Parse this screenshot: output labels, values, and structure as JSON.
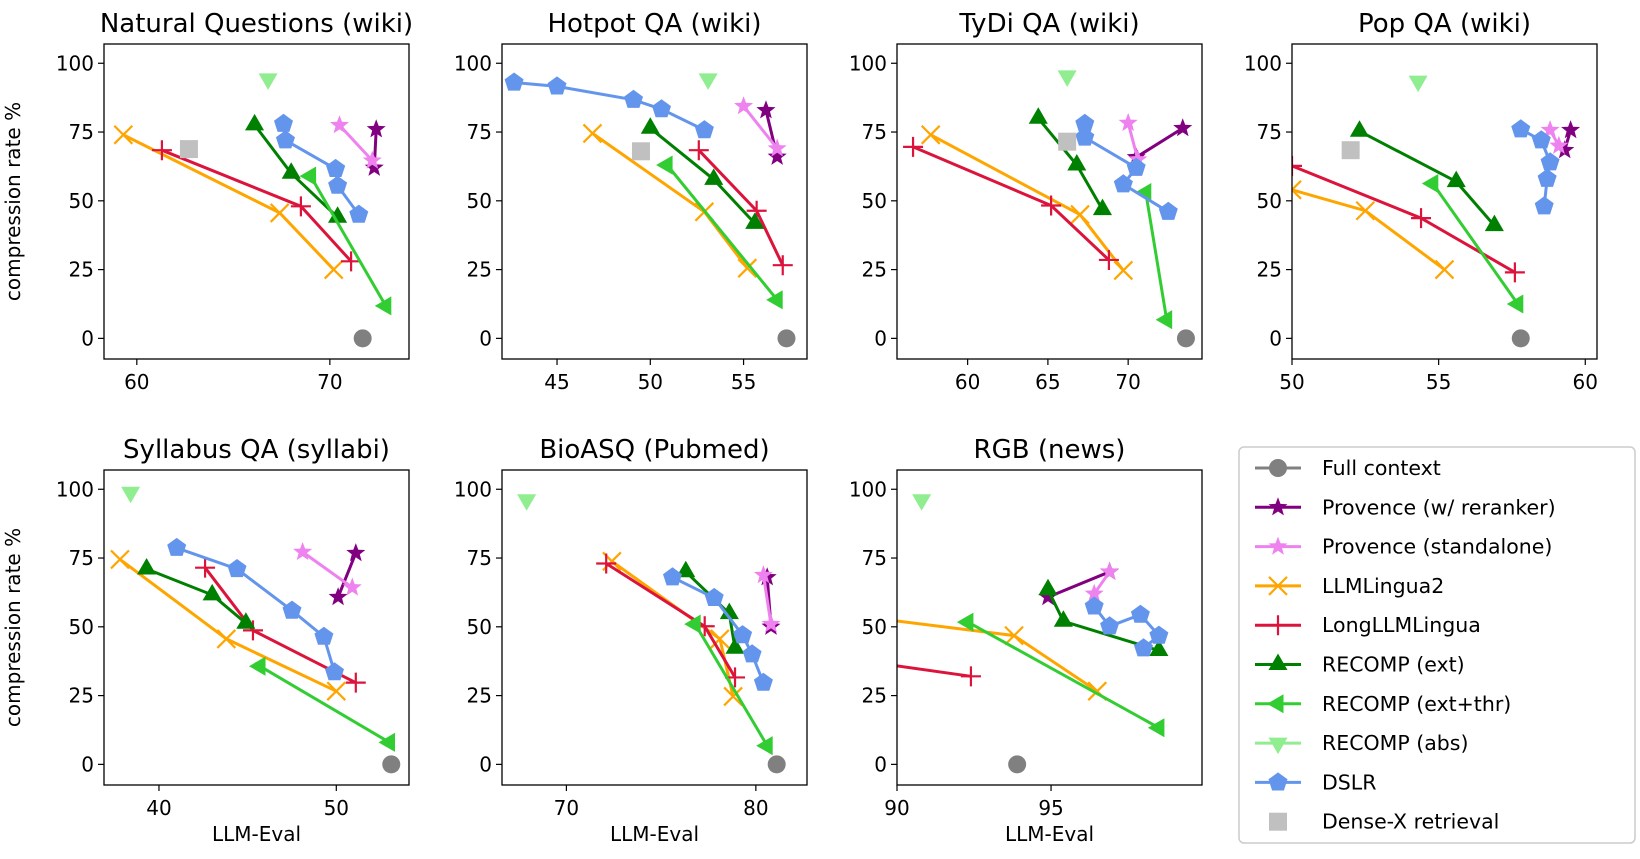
{
  "chart_data": {
    "type": "line",
    "ylabel": "compression rate %",
    "xlabel": "LLM-Eval",
    "grid": false,
    "legend_placement": "bottom-right",
    "ylim": [
      -7.5,
      107
    ],
    "yticks": [
      0,
      25,
      50,
      75,
      100
    ],
    "legend": [
      {
        "name": "Full context",
        "color": "#808080",
        "marker": "circle"
      },
      {
        "name": "Provence (w/ reranker)",
        "color": "#800080",
        "marker": "star"
      },
      {
        "name": "Provence (standalone)",
        "color": "#ee82ee",
        "marker": "star"
      },
      {
        "name": "LLMLingua2",
        "color": "#ffa500",
        "marker": "x"
      },
      {
        "name": "LongLLMLingua",
        "color": "#dc143c",
        "marker": "plus"
      },
      {
        "name": "RECOMP (ext)",
        "color": "#008000",
        "marker": "triangle-up"
      },
      {
        "name": "RECOMP (ext+thr)",
        "color": "#32cd32",
        "marker": "triangle-left"
      },
      {
        "name": "RECOMP (abs)",
        "color": "#90ee90",
        "marker": "triangle-down"
      },
      {
        "name": "DSLR",
        "color": "#6495ed",
        "marker": "pentagon"
      },
      {
        "name": "Dense-X retrieval",
        "color": "#c0c0c0",
        "marker": "square"
      }
    ],
    "panels": [
      {
        "title": "Natural Questions (wiki)",
        "xlim": [
          58.3,
          74.1
        ],
        "xticks": [
          60,
          70
        ],
        "series": {
          "Full context": [
            [
              71.7,
              0
            ]
          ],
          "Provence (w/ reranker)": [
            [
              72.4,
              76
            ],
            [
              72.3,
              62
            ]
          ],
          "Provence (standalone)": [
            [
              70.5,
              77.5
            ],
            [
              72.2,
              64.6
            ]
          ],
          "LLMLingua2": [
            [
              59.3,
              74
            ],
            [
              67.4,
              45.6
            ],
            [
              70.2,
              25
            ]
          ],
          "LongLLMLingua": [
            [
              61.3,
              68.4
            ],
            [
              68.5,
              48
            ],
            [
              71.1,
              28
            ]
          ],
          "RECOMP (ext)": [
            [
              66.1,
              77.6
            ],
            [
              68.0,
              60
            ],
            [
              70.4,
              44
            ]
          ],
          "RECOMP (ext+thr)": [
            [
              69.0,
              59
            ],
            [
              72.9,
              11.8
            ]
          ],
          "RECOMP (abs)": [
            [
              66.8,
              94.3
            ]
          ],
          "DSLR": [
            [
              67.6,
              78
            ],
            [
              67.7,
              72
            ],
            [
              70.3,
              61.6
            ],
            [
              70.4,
              55.5
            ],
            [
              71.5,
              45
            ]
          ],
          "Dense-X retrieval": [
            [
              62.7,
              68.8
            ]
          ]
        }
      },
      {
        "title": "Hotpot QA (wiki)",
        "xlim": [
          42.05,
          58.4
        ],
        "xticks": [
          45,
          50,
          55
        ],
        "series": {
          "Full context": [
            [
              57.3,
              0
            ]
          ],
          "Provence (w/ reranker)": [
            [
              56.2,
              82.9
            ],
            [
              56.8,
              66
            ]
          ],
          "Provence (standalone)": [
            [
              55.0,
              84.4
            ],
            [
              56.8,
              69
            ]
          ],
          "LLMLingua2": [
            [
              46.9,
              74.5
            ],
            [
              52.9,
              46
            ],
            [
              55.2,
              25.5
            ]
          ],
          "LongLLMLingua": [
            [
              52.6,
              68.4
            ],
            [
              55.7,
              46.4
            ],
            [
              57.1,
              26.6
            ]
          ],
          "RECOMP (ext)": [
            [
              50.0,
              76.4
            ],
            [
              53.4,
              57.8
            ],
            [
              55.6,
              41.8
            ]
          ],
          "RECOMP (ext+thr)": [
            [
              50.9,
              63
            ],
            [
              56.8,
              14
            ]
          ],
          "RECOMP (abs)": [
            [
              53.1,
              94.3
            ]
          ],
          "DSLR": [
            [
              42.7,
              93
            ],
            [
              45.0,
              91.6
            ],
            [
              49.1,
              86.7
            ],
            [
              50.6,
              83.3
            ],
            [
              52.9,
              75.7
            ]
          ],
          "Dense-X retrieval": [
            [
              49.5,
              68
            ]
          ]
        }
      },
      {
        "title": "TyDi QA (wiki)",
        "xlim": [
          55.6,
          74.6
        ],
        "xticks": [
          60,
          65,
          70
        ],
        "series": {
          "Full context": [
            [
              73.6,
              0
            ]
          ],
          "Provence (w/ reranker)": [
            [
              70.5,
              65.8
            ],
            [
              73.4,
              76.4
            ]
          ],
          "Provence (standalone)": [
            [
              70.0,
              78.3
            ],
            [
              70.6,
              65
            ]
          ],
          "LLMLingua2": [
            [
              57.7,
              74
            ],
            [
              67.0,
              45
            ],
            [
              69.7,
              24.7
            ]
          ],
          "LongLLMLingua": [
            [
              56.6,
              69.6
            ],
            [
              65.2,
              48.3
            ],
            [
              68.8,
              28.5
            ]
          ],
          "RECOMP (ext)": [
            [
              64.4,
              80
            ],
            [
              66.8,
              63
            ],
            [
              68.4,
              46.8
            ]
          ],
          "RECOMP (ext+thr)": [
            [
              71.1,
              53
            ],
            [
              72.4,
              6.8
            ]
          ],
          "RECOMP (abs)": [
            [
              66.2,
              95.4
            ]
          ],
          "DSLR": [
            [
              67.3,
              78
            ],
            [
              67.3,
              73
            ],
            [
              70.5,
              62
            ],
            [
              69.7,
              56
            ],
            [
              72.5,
              46
            ]
          ],
          "Dense-X retrieval": [
            [
              66.2,
              71.5
            ]
          ]
        }
      },
      {
        "title": "Pop QA (wiki)",
        "xlim": [
          50,
          60.4
        ],
        "xticks": [
          50,
          55,
          60
        ],
        "series": {
          "Full context": [
            [
              57.8,
              0
            ]
          ],
          "Provence (w/ reranker)": [
            [
              59.5,
              75.7
            ],
            [
              59.3,
              68.4
            ]
          ],
          "Provence (standalone)": [
            [
              58.8,
              75.7
            ],
            [
              59.1,
              70
            ]
          ],
          "LLMLingua2": [
            [
              50.0,
              54
            ],
            [
              52.5,
              46.4
            ],
            [
              55.2,
              25
            ]
          ],
          "LongLLMLingua": [
            [
              50.0,
              62.7
            ],
            [
              54.4,
              43.7
            ],
            [
              57.6,
              24
            ]
          ],
          "RECOMP (ext)": [
            [
              52.3,
              75.3
            ],
            [
              55.6,
              57
            ],
            [
              56.9,
              41
            ]
          ],
          "RECOMP (ext+thr)": [
            [
              54.8,
              56.3
            ],
            [
              57.7,
              12.5
            ]
          ],
          "RECOMP (abs)": [
            [
              54.3,
              93.5
            ]
          ],
          "DSLR": [
            [
              57.8,
              76
            ],
            [
              58.5,
              72
            ],
            [
              58.8,
              64
            ],
            [
              58.7,
              58
            ],
            [
              58.6,
              48
            ]
          ],
          "Dense-X retrieval": [
            [
              52.0,
              68.4
            ]
          ]
        }
      },
      {
        "title": "Syllabus QA (syllabi)",
        "xlim": [
          36.9,
          54.1
        ],
        "xticks": [
          40,
          50
        ],
        "series": {
          "Full context": [
            [
              53.1,
              0
            ]
          ],
          "Provence (w/ reranker)": [
            [
              51.1,
              76.8
            ],
            [
              50.1,
              60.8
            ]
          ],
          "Provence (standalone)": [
            [
              48.1,
              77.2
            ],
            [
              50.9,
              64.3
            ]
          ],
          "LLMLingua2": [
            [
              37.8,
              74.5
            ],
            [
              43.8,
              45.6
            ],
            [
              50.0,
              26.6
            ]
          ],
          "LongLLMLingua": [
            [
              42.6,
              71.5
            ],
            [
              45.3,
              48.7
            ],
            [
              51.1,
              29.7
            ]
          ],
          "RECOMP (ext)": [
            [
              39.3,
              71
            ],
            [
              43.0,
              61.6
            ],
            [
              44.9,
              51.3
            ]
          ],
          "RECOMP (ext+thr)": [
            [
              45.7,
              35.7
            ],
            [
              53.0,
              8
            ]
          ],
          "RECOMP (abs)": [
            [
              38.4,
              98.9
            ]
          ],
          "DSLR": [
            [
              41.0,
              78.7
            ],
            [
              44.4,
              71
            ],
            [
              47.5,
              55.9
            ],
            [
              49.3,
              46.4
            ],
            [
              49.9,
              33.5
            ]
          ]
        }
      },
      {
        "title": "BioASQ (Pubmed)",
        "xlim": [
          66.6,
          82.7
        ],
        "xticks": [
          70,
          80
        ],
        "series": {
          "Full context": [
            [
              81.1,
              0
            ]
          ],
          "Provence (w/ reranker)": [
            [
              80.6,
              68
            ],
            [
              80.8,
              50
            ]
          ],
          "Provence (standalone)": [
            [
              80.4,
              68.8
            ],
            [
              80.8,
              51
            ]
          ],
          "LLMLingua2": [
            [
              72.4,
              73.8
            ],
            [
              78.1,
              45.6
            ],
            [
              78.8,
              24.7
            ]
          ],
          "LongLLMLingua": [
            [
              72.1,
              73
            ],
            [
              77.3,
              50.2
            ],
            [
              78.9,
              31.6
            ]
          ],
          "RECOMP (ext)": [
            [
              76.3,
              70
            ],
            [
              78.6,
              54.8
            ],
            [
              78.9,
              42.2
            ]
          ],
          "RECOMP (ext+thr)": [
            [
              76.8,
              51
            ],
            [
              80.6,
              6.8
            ]
          ],
          "RECOMP (abs)": [
            [
              67.9,
              96.2
            ]
          ],
          "DSLR": [
            [
              75.6,
              68
            ],
            [
              77.8,
              60.5
            ],
            [
              79.3,
              47
            ],
            [
              79.8,
              40
            ],
            [
              80.4,
              29.7
            ]
          ]
        }
      },
      {
        "title": "RGB (news)",
        "xlim": [
          90,
          99.9
        ],
        "xticks": [
          90,
          95
        ],
        "series": {
          "Full context": [
            [
              93.9,
              0
            ]
          ],
          "Provence (w/ reranker)": [
            [
              94.9,
              60.8
            ],
            [
              96.9,
              70
            ]
          ],
          "Provence (standalone)": [
            [
              96.4,
              62
            ],
            [
              96.9,
              70
            ]
          ],
          "LLMLingua2": [
            [
              89.0,
              53.5
            ],
            [
              93.8,
              46.8
            ],
            [
              96.5,
              26.6
            ]
          ],
          "LongLLMLingua": [
            [
              89.0,
              37.4
            ],
            [
              92.4,
              32
            ]
          ],
          "RECOMP (ext)": [
            [
              94.9,
              63.5
            ],
            [
              95.4,
              52
            ],
            [
              98.5,
              41.4
            ]
          ],
          "RECOMP (ext+thr)": [
            [
              92.3,
              51.7
            ],
            [
              98.5,
              13.3
            ]
          ],
          "RECOMP (abs)": [
            [
              90.8,
              96.2
            ]
          ],
          "DSLR": [
            [
              96.4,
              57.4
            ],
            [
              96.9,
              50.2
            ],
            [
              97.9,
              54.4
            ],
            [
              98.5,
              46.8
            ],
            [
              98.0,
              42.2
            ]
          ]
        }
      }
    ]
  }
}
